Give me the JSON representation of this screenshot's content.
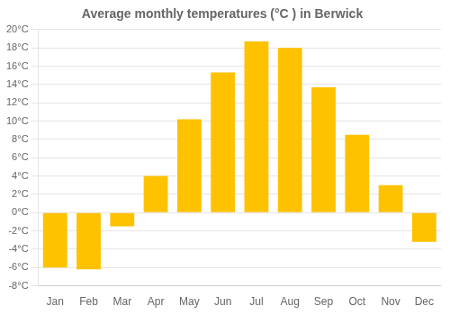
{
  "chart_data": {
    "type": "bar",
    "title": "Average monthly temperatures (°C ) in Berwick",
    "categories": [
      "Jan",
      "Feb",
      "Mar",
      "Apr",
      "May",
      "Jun",
      "Jul",
      "Aug",
      "Sep",
      "Oct",
      "Nov",
      "Dec"
    ],
    "values": [
      -6.0,
      -6.2,
      -1.5,
      4.0,
      10.2,
      15.3,
      18.7,
      18.0,
      13.7,
      8.5,
      3.0,
      -3.2
    ],
    "color": "#FFC200",
    "ylim": [
      -8,
      20
    ],
    "yticks": [
      {
        "value": -8,
        "label": "-8°C"
      },
      {
        "value": -6,
        "label": "-6°C"
      },
      {
        "value": -4,
        "label": "-4°C"
      },
      {
        "value": -2,
        "label": "-2°C"
      },
      {
        "value": 0,
        "label": "0°C"
      },
      {
        "value": 2,
        "label": "2°C"
      },
      {
        "value": 4,
        "label": "4°C"
      },
      {
        "value": 6,
        "label": "6°C"
      },
      {
        "value": 8,
        "label": "8°C"
      },
      {
        "value": 10,
        "label": "10°C"
      },
      {
        "value": 12,
        "label": "12°C"
      },
      {
        "value": 14,
        "label": "14°C"
      },
      {
        "value": 16,
        "label": "16°C"
      },
      {
        "value": 18,
        "label": "18°C"
      },
      {
        "value": 20,
        "label": "20°C"
      }
    ],
    "grid": true
  }
}
